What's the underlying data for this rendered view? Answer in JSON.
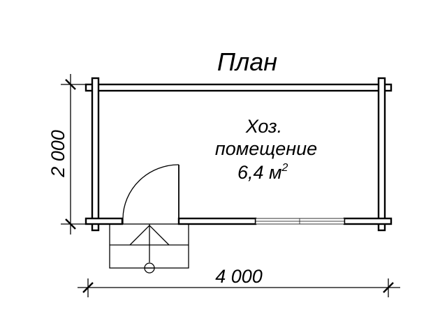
{
  "plan": {
    "title": "План",
    "room": {
      "name_line1": "Хоз.",
      "name_line2": "помещение",
      "area_value": "6,4 м",
      "area_exponent": "2"
    },
    "dimensions": {
      "width": "4 000",
      "height": "2 000"
    }
  }
}
